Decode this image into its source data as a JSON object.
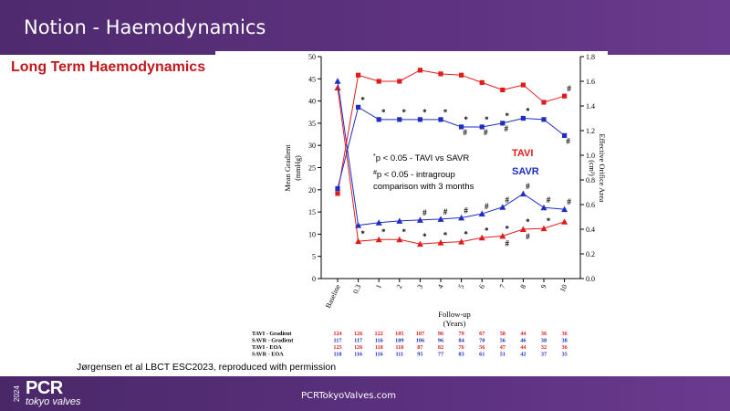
{
  "header": {
    "title": "Notion - Haemodynamics"
  },
  "subtitle": "Long Term Haemodynamics",
  "citation": "Jørgensen et al LBCT ESC2023, reproduced with permission",
  "footer": {
    "year": "2024",
    "logo": "PCR",
    "logo_sub": "tokyo valves",
    "url": "PCRTokyoValves.com"
  },
  "colors": {
    "tavi": "#e01b1b",
    "savr": "#1f2ec0",
    "header": "#5e3280"
  },
  "chart_data": {
    "type": "line",
    "categories": [
      "Baseline",
      "0.3",
      "1",
      "2",
      "3",
      "4",
      "5",
      "6",
      "7",
      "8",
      "9",
      "10"
    ],
    "xlabel": "Follow-up",
    "xlabel_units": "(Years)",
    "ylabel_left": "Mean Gradient",
    "ylabel_left_units": "(mmHg)",
    "ylabel_right": "Effective Orifice Area",
    "ylabel_right_units": "(cm²)",
    "left_ticks": [
      "0",
      "5",
      "10",
      "15",
      "20",
      "25",
      "30",
      "35",
      "40",
      "45",
      "50"
    ],
    "right_ticks": [
      "0.0",
      "0.2",
      "0.4",
      "0.6",
      "0.8",
      "1.0",
      "1.2",
      "1.4",
      "1.6",
      "1.8"
    ],
    "ylim_left": [
      0,
      50
    ],
    "ylim_right": [
      0,
      1.8
    ],
    "series": [
      {
        "name": "TAVI",
        "metric": "Gradient",
        "axis": "left",
        "marker": "triangle",
        "values": [
          43,
          8.4,
          8.8,
          8.8,
          7.8,
          8.1,
          8.3,
          9.2,
          9.6,
          11.1,
          11.3,
          12.8
        ]
      },
      {
        "name": "SAVR",
        "metric": "Gradient",
        "axis": "left",
        "marker": "triangle",
        "values": [
          44.5,
          12,
          12.6,
          13,
          13.2,
          13.4,
          13.7,
          14.6,
          16.1,
          19.1,
          16,
          15.6
        ]
      },
      {
        "name": "TAVI",
        "metric": "EOA",
        "axis": "right",
        "marker": "square",
        "values": [
          0.69,
          1.65,
          1.6,
          1.6,
          1.69,
          1.66,
          1.65,
          1.59,
          1.53,
          1.57,
          1.43,
          1.48
        ]
      },
      {
        "name": "SAVR",
        "metric": "EOA",
        "axis": "right",
        "marker": "square",
        "values": [
          0.73,
          1.39,
          1.29,
          1.29,
          1.29,
          1.29,
          1.23,
          1.23,
          1.26,
          1.3,
          1.29,
          1.16
        ]
      }
    ],
    "annotations": [
      {
        "x": "0.3",
        "series": "SAVR EOA",
        "text": "*"
      },
      {
        "x": "1",
        "series": "SAVR EOA",
        "text": "*"
      },
      {
        "x": "2",
        "series": "SAVR EOA",
        "text": "*"
      },
      {
        "x": "3",
        "series": "SAVR EOA",
        "text": "*"
      },
      {
        "x": "4",
        "series": "SAVR EOA",
        "text": "*"
      },
      {
        "x": "5",
        "series": "SAVR EOA",
        "text": "*"
      },
      {
        "x": "5",
        "series": "SAVR EOA",
        "text": "#"
      },
      {
        "x": "6",
        "series": "SAVR EOA",
        "text": "*"
      },
      {
        "x": "6",
        "series": "SAVR EOA",
        "text": "#"
      },
      {
        "x": "7",
        "series": "SAVR EOA",
        "text": "*"
      },
      {
        "x": "7",
        "series": "SAVR EOA",
        "text": "#"
      },
      {
        "x": "8",
        "series": "SAVR EOA",
        "text": "*"
      },
      {
        "x": "10",
        "series": "SAVR EOA",
        "text": "#"
      },
      {
        "x": "10",
        "series": "TAVI EOA",
        "text": "#"
      },
      {
        "x": "0.3",
        "series": "TAVI Gradient",
        "text": "*"
      },
      {
        "x": "1",
        "series": "TAVI Gradient",
        "text": "*"
      },
      {
        "x": "2",
        "series": "TAVI Gradient",
        "text": "*"
      },
      {
        "x": "3",
        "series": "TAVI Gradient",
        "text": "*"
      },
      {
        "x": "4",
        "series": "TAVI Gradient",
        "text": "*"
      },
      {
        "x": "5",
        "series": "TAVI Gradient",
        "text": "*"
      },
      {
        "x": "6",
        "series": "TAVI Gradient",
        "text": "*"
      },
      {
        "x": "7",
        "series": "TAVI Gradient",
        "text": "*"
      },
      {
        "x": "7",
        "series": "TAVI Gradient",
        "text": "#"
      },
      {
        "x": "8",
        "series": "TAVI Gradient",
        "text": "*"
      },
      {
        "x": "8",
        "series": "TAVI Gradient",
        "text": "#"
      },
      {
        "x": "9",
        "series": "TAVI Gradient",
        "text": "*"
      },
      {
        "x": "3",
        "series": "SAVR Gradient",
        "text": "#"
      },
      {
        "x": "4",
        "series": "SAVR Gradient",
        "text": "#"
      },
      {
        "x": "5",
        "series": "SAVR Gradient",
        "text": "#"
      },
      {
        "x": "6",
        "series": "SAVR Gradient",
        "text": "#"
      },
      {
        "x": "7",
        "series": "SAVR Gradient",
        "text": "#"
      },
      {
        "x": "8",
        "series": "SAVR Gradient",
        "text": "#"
      },
      {
        "x": "9",
        "series": "SAVR Gradient",
        "text": "#"
      },
      {
        "x": "10",
        "series": "SAVR Gradient",
        "text": "#"
      }
    ],
    "legend_text": [
      {
        "prefix": "*",
        "text": "p < 0.05 - TAVI vs SAVR"
      },
      {
        "prefix": "#",
        "text": "p < 0.05 - intragroup"
      },
      {
        "prefix": "",
        "text": "comparison with 3 months"
      }
    ],
    "legend_labels": [
      {
        "text": "TAVI",
        "color": "#e01b1b"
      },
      {
        "text": "SAVR",
        "color": "#1f2ec0"
      }
    ],
    "table": {
      "rows": [
        {
          "label": "TAVI - Gradient",
          "color": "#e01b1b",
          "values": [
            "124",
            "126",
            "122",
            "105",
            "107",
            "96",
            "79",
            "67",
            "58",
            "44",
            "36",
            "36"
          ]
        },
        {
          "label": "SAVR - Gradient",
          "color": "#1f2ec0",
          "values": [
            "117",
            "117",
            "116",
            "109",
            "106",
            "96",
            "84",
            "70",
            "56",
            "46",
            "38",
            "38"
          ]
        },
        {
          "label": "TAVI - EOA",
          "color": "#e01b1b",
          "values": [
            "125",
            "126",
            "118",
            "118",
            "87",
            "82",
            "76",
            "56",
            "47",
            "44",
            "32",
            "36"
          ]
        },
        {
          "label": "SAVR - EOA",
          "color": "#1f2ec0",
          "values": [
            "118",
            "116",
            "116",
            "111",
            "95",
            "77",
            "83",
            "61",
            "51",
            "42",
            "37",
            "35"
          ]
        }
      ]
    }
  }
}
